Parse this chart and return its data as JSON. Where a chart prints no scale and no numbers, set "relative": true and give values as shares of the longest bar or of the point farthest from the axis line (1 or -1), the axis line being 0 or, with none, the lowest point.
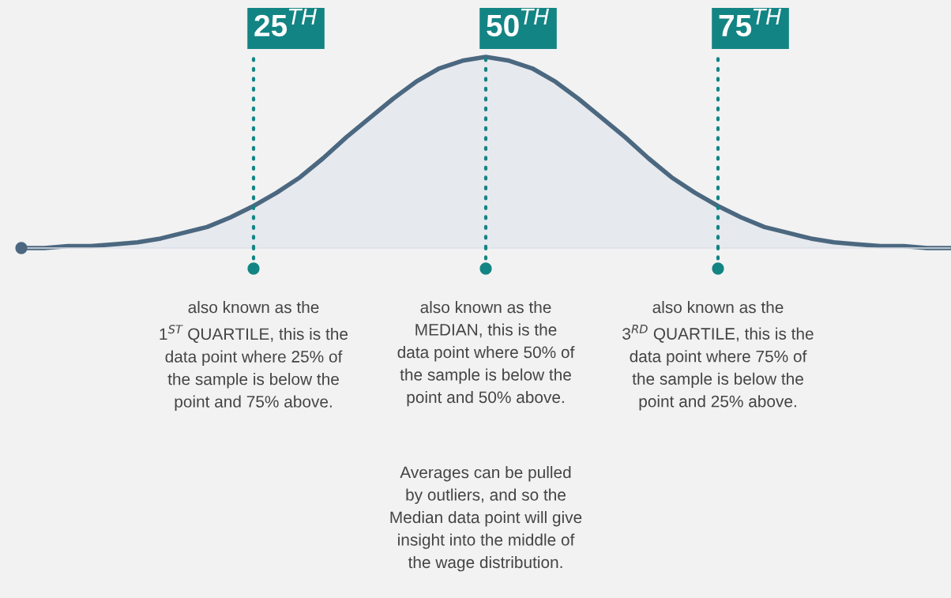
{
  "chart_data": {
    "type": "area",
    "relative": true,
    "grid": "x",
    "categories": [
      null,
      null,
      null,
      null,
      null,
      null,
      null,
      null,
      null,
      null,
      null,
      null,
      null,
      null,
      null,
      null,
      null,
      null,
      null,
      null,
      null,
      null,
      null,
      null,
      null,
      null,
      null,
      null,
      null,
      null,
      null,
      null,
      null,
      null,
      null,
      null,
      null,
      null,
      null,
      null,
      null
    ],
    "series": [
      {
        "color": "#4b6880",
        "values": [
          0,
          0,
          0.01,
          0.01,
          0.02,
          0.03,
          0.05,
          0.08,
          0.11,
          0.16,
          0.22,
          0.29,
          0.37,
          0.47,
          0.58,
          0.68,
          0.78,
          0.87,
          0.94,
          0.98,
          1,
          0.98,
          0.94,
          0.87,
          0.78,
          0.68,
          0.58,
          0.47,
          0.37,
          0.29,
          0.22,
          0.16,
          0.11,
          0.08,
          0.05,
          0.03,
          0.02,
          0.01,
          0.01,
          0,
          0
        ]
      }
    ],
    "annotations": [
      "25$^{TH}$",
      "50$^{TH}$",
      "75$^{TH}$",
      "also known as the\n1$^{ST}$ QUARTILE, this is the\ndata point where 25% of\nthe sample is below the\npoint and 75% above.",
      "also known as the\nMEDIAN, this is the\ndata point where 50% of\nthe sample is below the\npoint and 50% above.",
      "also known as the\n3$^{RD}$ QUARTILE, this is the\ndata point where 75% of\nthe sample is below the\npoint and 25% above.",
      "Averages can be pulled\nby outliers, and so the\nMedian data point will give\ninsight into the middle of\nthe wage distribution."
    ]
  }
}
